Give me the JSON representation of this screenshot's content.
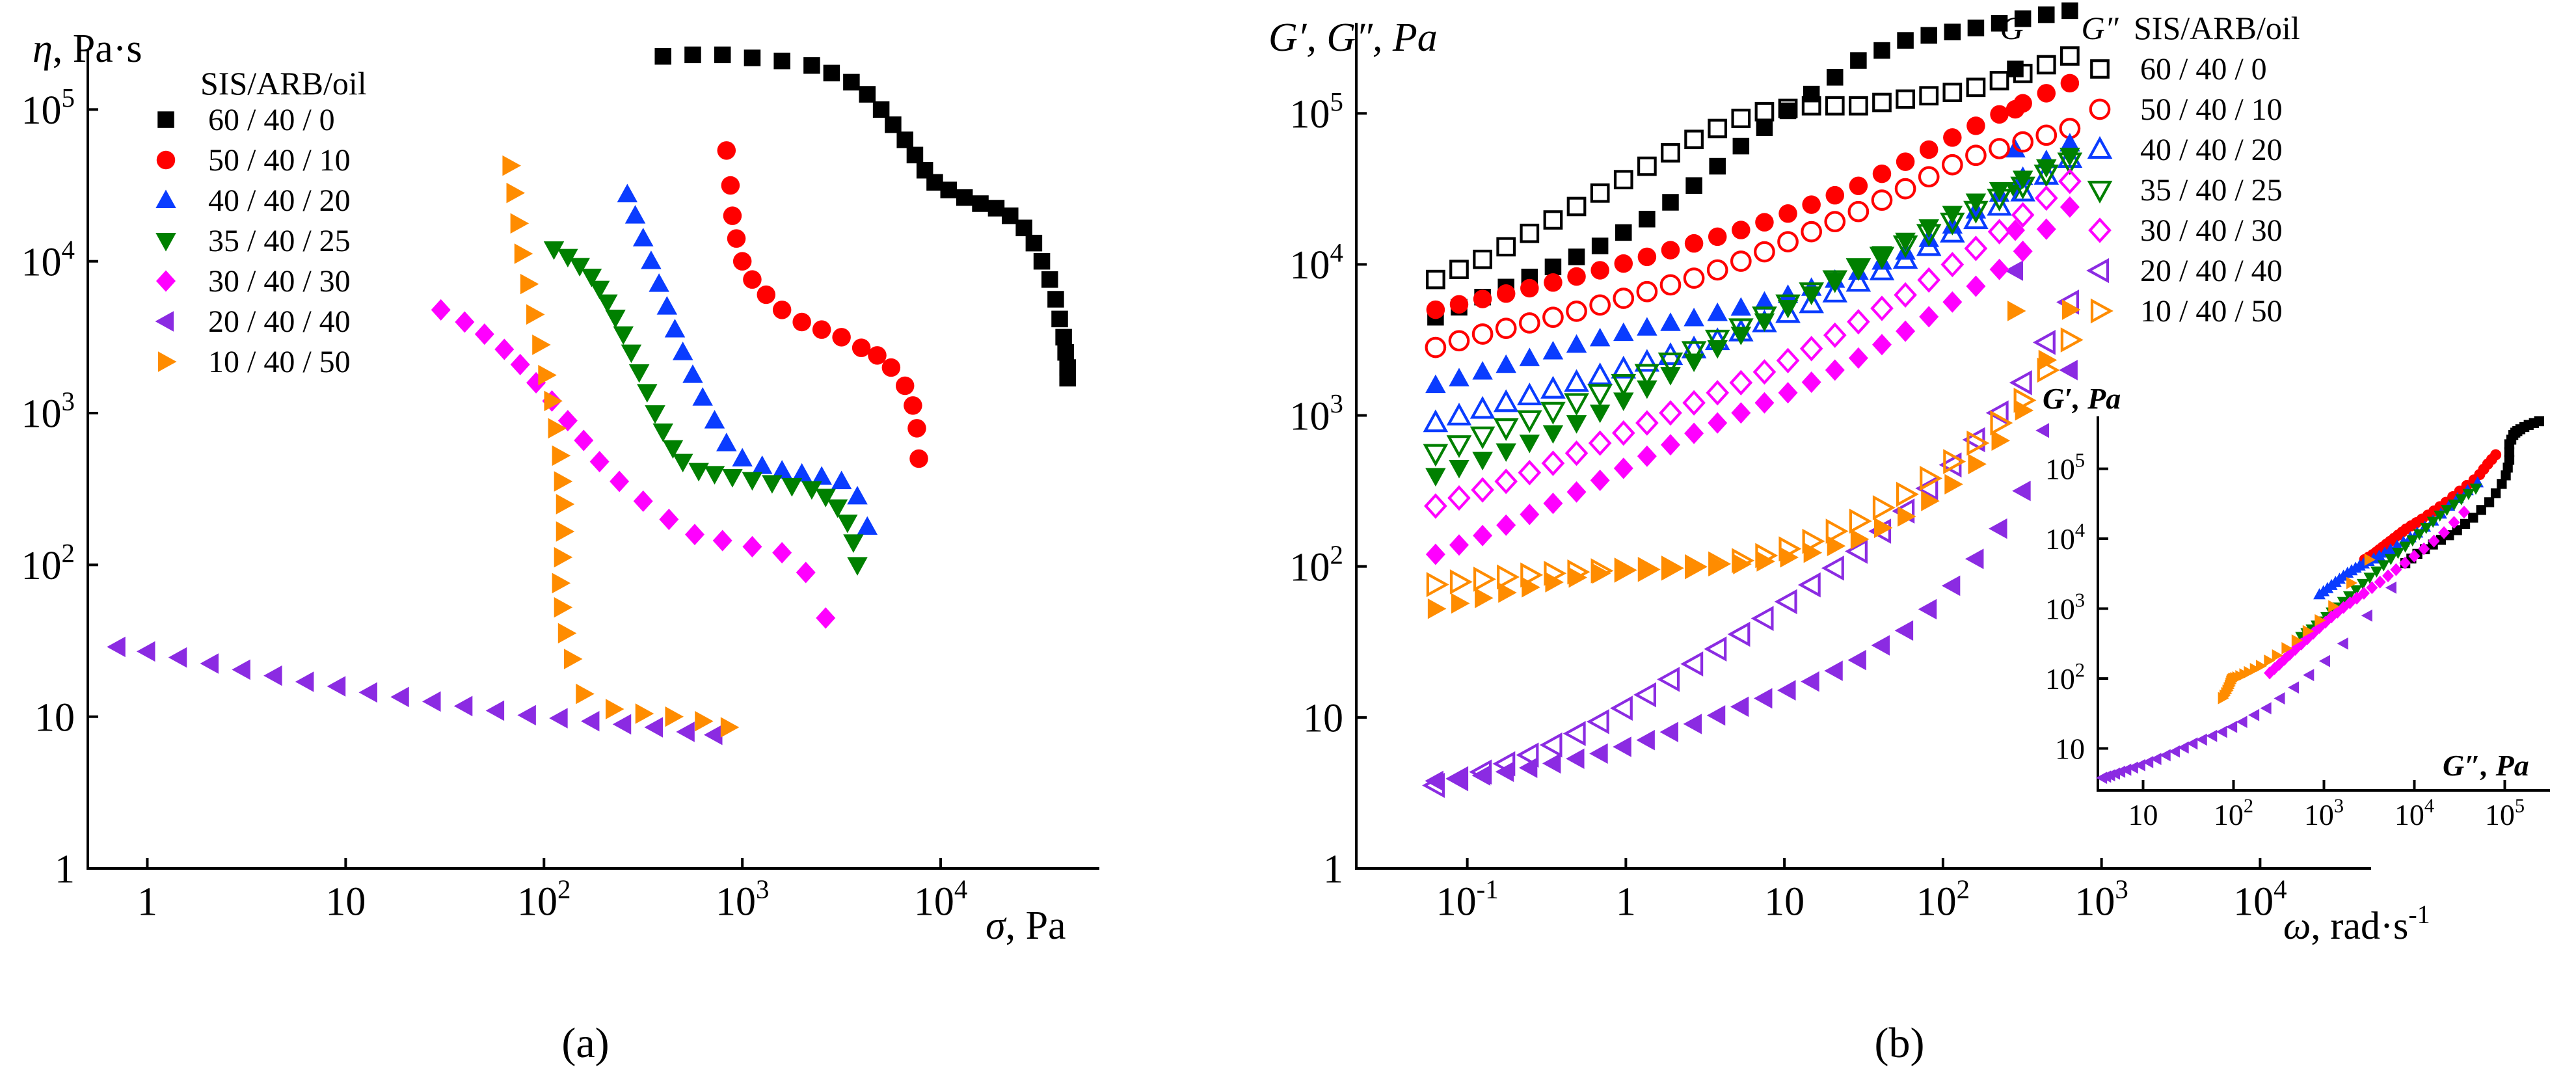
{
  "colors": {
    "60/40/0": "#000000",
    "50/40/10": "#ff0000",
    "40/40/20": "#0a3cff",
    "35/40/25": "#008000",
    "30/40/30": "#ff00ff",
    "20/40/40": "#8b2be2",
    "10/40/50": "#ff8c00"
  },
  "chart_data": [
    {
      "panel": "a",
      "type": "scatter",
      "panel_label": "(a)",
      "ylabel_sym": "η",
      "ylabel_unit": ", Pa·s",
      "xlabel_sym": "σ",
      "xlabel_unit": ", Pa",
      "legend_title": "SIS/ARB/oil",
      "xscale": "log",
      "yscale": "log",
      "xlim_log10": [
        -0.3,
        4.8
      ],
      "ylim_log10": [
        0,
        5.4
      ],
      "x_ticks": [
        {
          "log": 0,
          "base": "1",
          "exp": ""
        },
        {
          "log": 1,
          "base": "10",
          "exp": ""
        },
        {
          "log": 2,
          "base": "10",
          "exp": "2"
        },
        {
          "log": 3,
          "base": "10",
          "exp": "3"
        },
        {
          "log": 4,
          "base": "10",
          "exp": "4"
        }
      ],
      "y_ticks": [
        {
          "log": 0,
          "base": "1",
          "exp": ""
        },
        {
          "log": 1,
          "base": "10",
          "exp": ""
        },
        {
          "log": 2,
          "base": "10",
          "exp": "2"
        },
        {
          "log": 3,
          "base": "10",
          "exp": "3"
        },
        {
          "log": 4,
          "base": "10",
          "exp": "4"
        },
        {
          "log": 5,
          "base": "10",
          "exp": "5"
        }
      ],
      "series": [
        {
          "name": "60 / 40 / 0",
          "color_key": "60/40/0",
          "marker": "square",
          "filled": true,
          "x_log10": [
            2.6,
            2.75,
            2.9,
            3.05,
            3.2,
            3.35,
            3.45,
            3.55,
            3.63,
            3.7,
            3.76,
            3.82,
            3.87,
            3.92,
            3.97,
            4.04,
            4.12,
            4.2,
            4.28,
            4.35,
            4.42,
            4.47,
            4.51,
            4.55,
            4.58,
            4.6,
            4.62,
            4.63,
            4.64,
            4.64
          ],
          "y_log10": [
            5.35,
            5.36,
            5.36,
            5.34,
            5.32,
            5.29,
            5.24,
            5.18,
            5.1,
            5.0,
            4.9,
            4.8,
            4.7,
            4.6,
            4.52,
            4.47,
            4.42,
            4.38,
            4.35,
            4.3,
            4.22,
            4.12,
            4.0,
            3.88,
            3.75,
            3.62,
            3.5,
            3.4,
            3.3,
            3.23
          ]
        },
        {
          "name": "50 / 40 / 10",
          "color_key": "50/40/10",
          "marker": "circle",
          "filled": true,
          "x_log10": [
            2.92,
            2.94,
            2.95,
            2.97,
            3.0,
            3.05,
            3.12,
            3.2,
            3.3,
            3.4,
            3.5,
            3.6,
            3.68,
            3.75,
            3.82,
            3.86,
            3.88,
            3.89
          ],
          "y_log10": [
            4.73,
            4.5,
            4.3,
            4.15,
            4.0,
            3.88,
            3.78,
            3.68,
            3.6,
            3.55,
            3.5,
            3.43,
            3.38,
            3.3,
            3.18,
            3.05,
            2.9,
            2.7
          ]
        },
        {
          "name": "40 / 40 / 20",
          "color_key": "40/40/20",
          "marker": "triangle-up",
          "filled": true,
          "x_log10": [
            2.42,
            2.46,
            2.5,
            2.54,
            2.58,
            2.62,
            2.66,
            2.7,
            2.75,
            2.8,
            2.86,
            2.92,
            3.0,
            3.1,
            3.2,
            3.3,
            3.4,
            3.5,
            3.58,
            3.63
          ],
          "y_log10": [
            4.44,
            4.3,
            4.15,
            4.0,
            3.85,
            3.7,
            3.55,
            3.4,
            3.25,
            3.1,
            2.95,
            2.8,
            2.7,
            2.65,
            2.62,
            2.6,
            2.58,
            2.55,
            2.45,
            2.25
          ]
        },
        {
          "name": "35 / 40 / 25",
          "color_key": "35/40/25",
          "marker": "triangle-down",
          "filled": true,
          "x_log10": [
            2.05,
            2.12,
            2.18,
            2.24,
            2.28,
            2.32,
            2.36,
            2.4,
            2.44,
            2.48,
            2.52,
            2.56,
            2.6,
            2.65,
            2.7,
            2.78,
            2.86,
            2.95,
            3.05,
            3.15,
            3.25,
            3.35,
            3.42,
            3.48,
            3.53,
            3.56,
            3.58
          ],
          "y_log10": [
            4.08,
            4.03,
            3.97,
            3.9,
            3.82,
            3.73,
            3.63,
            3.52,
            3.4,
            3.27,
            3.14,
            3.0,
            2.88,
            2.77,
            2.68,
            2.62,
            2.6,
            2.58,
            2.56,
            2.54,
            2.52,
            2.5,
            2.45,
            2.38,
            2.28,
            2.15,
            2.0
          ]
        },
        {
          "name": "30 / 40 / 30",
          "color_key": "30/40/30",
          "marker": "diamond",
          "filled": true,
          "x_log10": [
            1.48,
            1.6,
            1.7,
            1.8,
            1.88,
            1.96,
            2.04,
            2.12,
            2.2,
            2.28,
            2.38,
            2.5,
            2.63,
            2.76,
            2.9,
            3.05,
            3.2,
            3.32,
            3.42
          ],
          "y_log10": [
            3.68,
            3.6,
            3.52,
            3.42,
            3.32,
            3.2,
            3.08,
            2.95,
            2.82,
            2.68,
            2.55,
            2.42,
            2.3,
            2.2,
            2.16,
            2.12,
            2.08,
            1.95,
            1.65
          ]
        },
        {
          "name": "20 / 40 / 40",
          "color_key": "20/40/40",
          "marker": "triangle-left",
          "filled": true,
          "x_log10": [
            -0.15,
            0.0,
            0.16,
            0.32,
            0.48,
            0.64,
            0.8,
            0.96,
            1.12,
            1.28,
            1.44,
            1.6,
            1.76,
            1.92,
            2.08,
            2.24,
            2.4,
            2.56,
            2.72,
            2.86
          ],
          "y_log10": [
            1.46,
            1.43,
            1.39,
            1.35,
            1.31,
            1.27,
            1.23,
            1.2,
            1.16,
            1.13,
            1.1,
            1.07,
            1.04,
            1.01,
            0.99,
            0.97,
            0.95,
            0.93,
            0.9,
            0.88
          ]
        },
        {
          "name": "10 / 40 / 50",
          "color_key": "10/40/50",
          "marker": "triangle-right",
          "filled": true,
          "x_log10": [
            1.83,
            1.85,
            1.87,
            1.89,
            1.92,
            1.95,
            1.98,
            2.01,
            2.04,
            2.06,
            2.08,
            2.09,
            2.1,
            2.1,
            2.09,
            2.08,
            2.09,
            2.11,
            2.14,
            2.2,
            2.35,
            2.5,
            2.65,
            2.8,
            2.93
          ],
          "y_log10": [
            4.63,
            4.45,
            4.25,
            4.05,
            3.85,
            3.65,
            3.45,
            3.25,
            3.08,
            2.9,
            2.72,
            2.55,
            2.4,
            2.22,
            2.05,
            1.88,
            1.72,
            1.55,
            1.38,
            1.15,
            1.05,
            1.02,
            1.0,
            0.97,
            0.93
          ]
        }
      ]
    },
    {
      "panel": "b",
      "type": "scatter",
      "panel_label": "(b)",
      "ylabel_text": "G′, G″, Pa",
      "xlabel_sym": "ω",
      "xlabel_unit": ", rad·s",
      "xlabel_exp": "-1",
      "legend_head_gp": "G′",
      "legend_head_gpp": "G″",
      "legend_title": "SIS/ARB/oil",
      "xscale": "log",
      "yscale": "log",
      "xlim_log10": [
        -1.7,
        4.7
      ],
      "ylim_log10": [
        0,
        5.6
      ],
      "x_ticks": [
        {
          "log": -1,
          "base": "10",
          "exp": "-1"
        },
        {
          "log": 0,
          "base": "1",
          "exp": ""
        },
        {
          "log": 1,
          "base": "10",
          "exp": ""
        },
        {
          "log": 2,
          "base": "10",
          "exp": "2"
        },
        {
          "log": 3,
          "base": "10",
          "exp": "3"
        },
        {
          "log": 4,
          "base": "10",
          "exp": "4"
        }
      ],
      "y_ticks": [
        {
          "log": 0,
          "base": "1",
          "exp": ""
        },
        {
          "log": 1,
          "base": "10",
          "exp": ""
        },
        {
          "log": 2,
          "base": "10",
          "exp": "2"
        },
        {
          "log": 3,
          "base": "10",
          "exp": "3"
        },
        {
          "log": 4,
          "base": "10",
          "exp": "4"
        },
        {
          "log": 5,
          "base": "10",
          "exp": "5"
        }
      ],
      "x_log10_range": [
        -1.2,
        2.8
      ],
      "n_points": 28,
      "series": [
        {
          "name": "60 / 40 / 0",
          "color_key": "60/40/0",
          "marker": "square",
          "gp_log10": [
            3.65,
            3.8,
            3.95,
            4.1,
            4.3,
            4.55,
            4.85,
            5.1,
            5.35,
            5.5,
            5.55,
            5.62,
            5.68
          ],
          "gpp_log10": [
            3.9,
            4.05,
            4.25,
            4.45,
            4.65,
            4.85,
            5.0,
            5.05,
            5.05,
            5.1,
            5.15,
            5.25,
            5.38
          ]
        },
        {
          "name": "50 / 40 / 10",
          "color_key": "50/40/10",
          "marker": "circle",
          "gp_log10": [
            3.7,
            3.78,
            3.86,
            3.95,
            4.05,
            4.15,
            4.25,
            4.38,
            4.52,
            4.7,
            4.88,
            5.05,
            5.2
          ],
          "gpp_log10": [
            3.45,
            3.55,
            3.63,
            3.72,
            3.82,
            3.92,
            4.05,
            4.2,
            4.35,
            4.52,
            4.7,
            4.8,
            4.9
          ]
        },
        {
          "name": "40 / 40 / 20",
          "color_key": "40/40/20",
          "marker": "triangle-up",
          "gp_log10": [
            3.2,
            3.3,
            3.4,
            3.5,
            3.58,
            3.65,
            3.73,
            3.83,
            3.95,
            4.1,
            4.3,
            4.55,
            4.8
          ],
          "gpp_log10": [
            2.95,
            3.05,
            3.15,
            3.25,
            3.35,
            3.45,
            3.58,
            3.72,
            3.88,
            4.05,
            4.25,
            4.45,
            4.7
          ]
        },
        {
          "name": "35 / 40 / 25",
          "color_key": "35/40/25",
          "marker": "triangle-down",
          "gp_log10": [
            2.6,
            2.72,
            2.85,
            3.0,
            3.18,
            3.38,
            3.58,
            3.78,
            3.98,
            4.18,
            4.38,
            4.55,
            4.72
          ],
          "gpp_log10": [
            2.75,
            2.88,
            3.0,
            3.13,
            3.28,
            3.45,
            3.62,
            3.8,
            3.98,
            4.15,
            4.32,
            4.5,
            4.68
          ]
        },
        {
          "name": "30 / 40 / 30",
          "color_key": "30/40/30",
          "marker": "diamond",
          "gp_log10": [
            2.08,
            2.22,
            2.38,
            2.55,
            2.73,
            2.9,
            3.05,
            3.2,
            3.38,
            3.58,
            3.8,
            4.05,
            4.38
          ],
          "gpp_log10": [
            2.4,
            2.52,
            2.65,
            2.8,
            2.95,
            3.1,
            3.25,
            3.42,
            3.62,
            3.82,
            4.05,
            4.3,
            4.55
          ]
        },
        {
          "name": "20 / 40 / 40",
          "color_key": "20/40/40",
          "marker": "triangle-left",
          "gp_log10": [
            0.58,
            0.62,
            0.68,
            0.75,
            0.85,
            0.97,
            1.1,
            1.22,
            1.38,
            1.6,
            1.95,
            2.4,
            3.3
          ],
          "gpp_log10": [
            0.55,
            0.65,
            0.78,
            0.95,
            1.15,
            1.38,
            1.6,
            1.85,
            2.1,
            2.4,
            2.75,
            3.15,
            3.75
          ]
        },
        {
          "name": "10 / 40 / 50",
          "color_key": "10/40/50",
          "marker": "triangle-right",
          "gp_log10": [
            1.72,
            1.8,
            1.88,
            1.95,
            1.98,
            2.0,
            2.02,
            2.08,
            2.18,
            2.35,
            2.6,
            2.95,
            3.7
          ],
          "gpp_log10": [
            1.88,
            1.92,
            1.95,
            1.97,
            1.98,
            2.0,
            2.05,
            2.15,
            2.3,
            2.5,
            2.75,
            3.05,
            3.5
          ]
        }
      ],
      "inset": {
        "ylabel": "G′, Pa",
        "xlabel": "G″, Pa",
        "xlim_log10": [
          0.5,
          5.5
        ],
        "ylim_log10": [
          0.4,
          5.75
        ],
        "x_ticks": [
          {
            "log": 1,
            "base": "10",
            "exp": ""
          },
          {
            "log": 2,
            "base": "10",
            "exp": "2"
          },
          {
            "log": 3,
            "base": "10",
            "exp": "3"
          },
          {
            "log": 4,
            "base": "10",
            "exp": "4"
          },
          {
            "log": 5,
            "base": "10",
            "exp": "5"
          }
        ],
        "y_ticks": [
          {
            "log": 1,
            "base": "10",
            "exp": ""
          },
          {
            "log": 2,
            "base": "10",
            "exp": "2"
          },
          {
            "log": 3,
            "base": "10",
            "exp": "3"
          },
          {
            "log": 4,
            "base": "10",
            "exp": "4"
          },
          {
            "log": 5,
            "base": "10",
            "exp": "5"
          }
        ]
      }
    }
  ]
}
